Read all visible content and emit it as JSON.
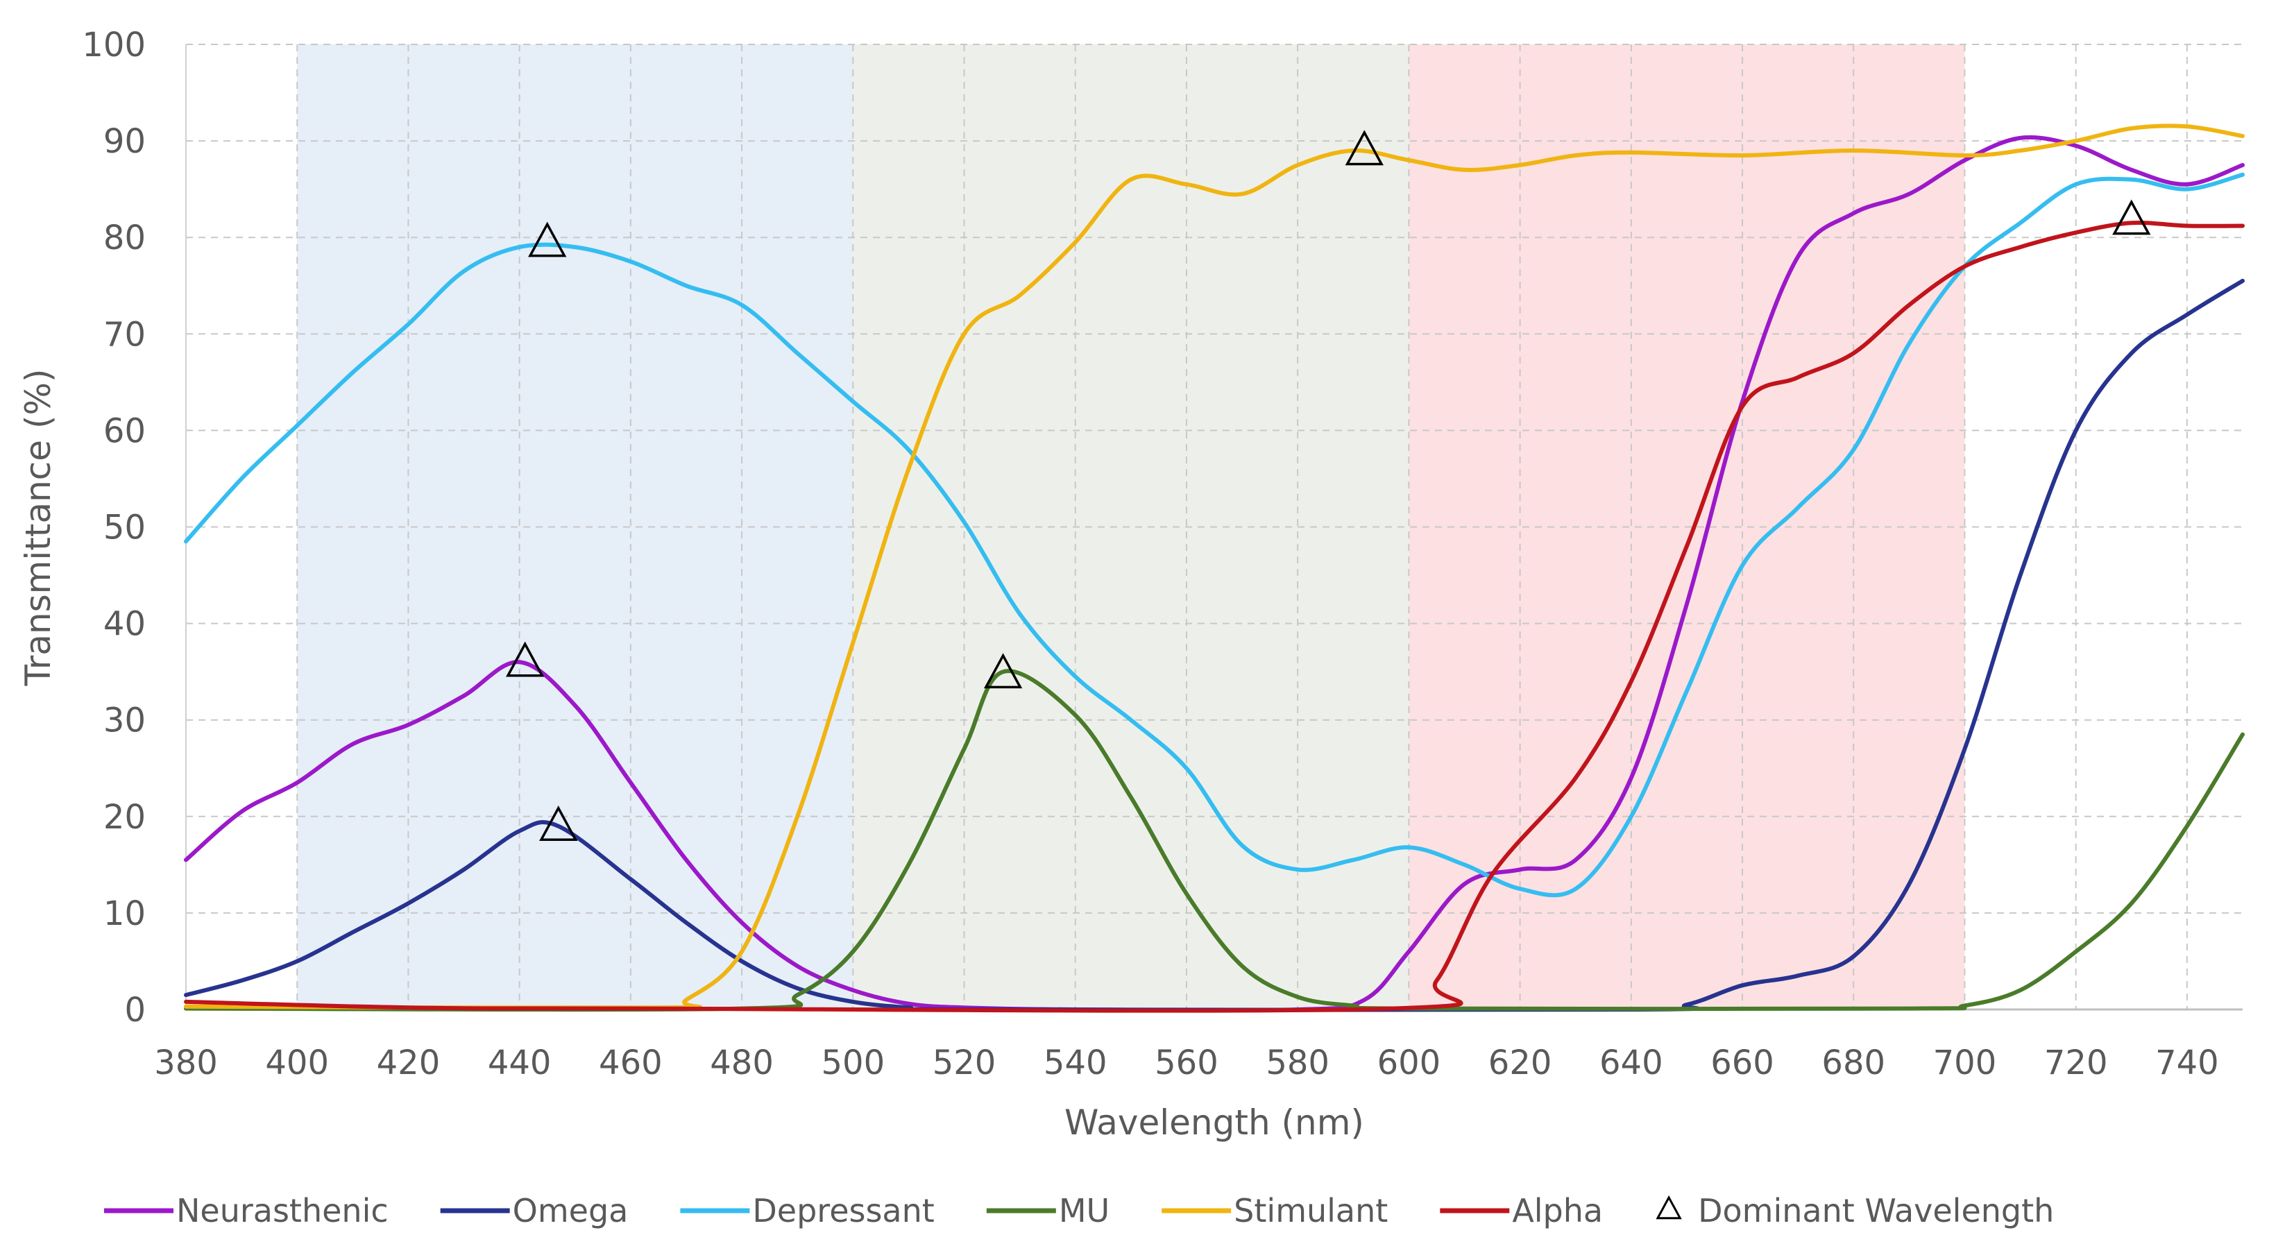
{
  "chart_data": {
    "type": "line",
    "title": "",
    "xlabel": "Wavelength (nm)",
    "ylabel": "Transmittance (%)",
    "xlim": [
      380,
      750
    ],
    "ylim": [
      0,
      100
    ],
    "x_ticks": [
      380,
      400,
      420,
      440,
      460,
      480,
      500,
      520,
      540,
      560,
      580,
      600,
      620,
      640,
      660,
      680,
      700,
      720,
      740
    ],
    "y_ticks": [
      0,
      10,
      20,
      30,
      40,
      50,
      60,
      70,
      80,
      90,
      100
    ],
    "grid": true,
    "legend_position": "bottom",
    "bands": [
      {
        "from": 400,
        "to": 500,
        "color": "#e6eef8"
      },
      {
        "from": 500,
        "to": 600,
        "color": "#edf0ea"
      },
      {
        "from": 600,
        "to": 700,
        "color": "#fde0e2"
      }
    ],
    "series": [
      {
        "name": "Neurasthenic",
        "color": "#9b19c9",
        "points": [
          [
            380,
            15.5
          ],
          [
            390,
            20.5
          ],
          [
            400,
            23.5
          ],
          [
            410,
            27.5
          ],
          [
            420,
            29.5
          ],
          [
            430,
            32.5
          ],
          [
            440,
            36
          ],
          [
            450,
            31.5
          ],
          [
            460,
            23.5
          ],
          [
            470,
            15.5
          ],
          [
            480,
            9
          ],
          [
            490,
            4.5
          ],
          [
            500,
            2
          ],
          [
            510,
            0.6
          ],
          [
            520,
            0.2
          ],
          [
            540,
            0
          ],
          [
            580,
            0
          ],
          [
            592,
            1
          ],
          [
            600,
            6
          ],
          [
            610,
            13
          ],
          [
            620,
            14.5
          ],
          [
            630,
            15.5
          ],
          [
            640,
            24
          ],
          [
            650,
            42
          ],
          [
            660,
            63
          ],
          [
            670,
            78
          ],
          [
            680,
            82.5
          ],
          [
            690,
            84.5
          ],
          [
            700,
            88
          ],
          [
            710,
            90.3
          ],
          [
            720,
            89.5
          ],
          [
            730,
            87
          ],
          [
            740,
            85.5
          ],
          [
            750,
            87.5
          ]
        ]
      },
      {
        "name": "Omega",
        "color": "#27338f",
        "points": [
          [
            380,
            1.5
          ],
          [
            390,
            3
          ],
          [
            400,
            5
          ],
          [
            410,
            8
          ],
          [
            420,
            11
          ],
          [
            430,
            14.5
          ],
          [
            440,
            18.5
          ],
          [
            447,
            19
          ],
          [
            460,
            13.5
          ],
          [
            470,
            9
          ],
          [
            480,
            5
          ],
          [
            490,
            2.2
          ],
          [
            500,
            0.8
          ],
          [
            510,
            0.2
          ],
          [
            520,
            0
          ],
          [
            640,
            0
          ],
          [
            650,
            0.5
          ],
          [
            660,
            2.5
          ],
          [
            670,
            3.5
          ],
          [
            680,
            5.5
          ],
          [
            690,
            13
          ],
          [
            700,
            27
          ],
          [
            710,
            45
          ],
          [
            720,
            60
          ],
          [
            730,
            68
          ],
          [
            740,
            72
          ],
          [
            750,
            75.5
          ]
        ]
      },
      {
        "name": "Depressant",
        "color": "#35bdf0",
        "points": [
          [
            380,
            48.5
          ],
          [
            390,
            55
          ],
          [
            400,
            60.5
          ],
          [
            410,
            66
          ],
          [
            420,
            71
          ],
          [
            430,
            76.5
          ],
          [
            440,
            79
          ],
          [
            450,
            79
          ],
          [
            460,
            77.5
          ],
          [
            470,
            75
          ],
          [
            480,
            73
          ],
          [
            490,
            68
          ],
          [
            500,
            63
          ],
          [
            510,
            58
          ],
          [
            520,
            50.5
          ],
          [
            530,
            41
          ],
          [
            540,
            34.5
          ],
          [
            550,
            30
          ],
          [
            560,
            25
          ],
          [
            570,
            17
          ],
          [
            580,
            14.5
          ],
          [
            590,
            15.5
          ],
          [
            600,
            16.8
          ],
          [
            610,
            15
          ],
          [
            620,
            12.5
          ],
          [
            630,
            12.5
          ],
          [
            640,
            20
          ],
          [
            650,
            33
          ],
          [
            660,
            46
          ],
          [
            670,
            52
          ],
          [
            680,
            58
          ],
          [
            690,
            69
          ],
          [
            700,
            77
          ],
          [
            710,
            81.5
          ],
          [
            720,
            85.5
          ],
          [
            730,
            86
          ],
          [
            740,
            85
          ],
          [
            750,
            86.5
          ]
        ]
      },
      {
        "name": "MU",
        "color": "#4a7b2a",
        "points": [
          [
            380,
            0.1
          ],
          [
            480,
            0.1
          ],
          [
            490,
            1.5
          ],
          [
            500,
            6
          ],
          [
            510,
            15
          ],
          [
            520,
            27
          ],
          [
            527,
            35
          ],
          [
            540,
            30.5
          ],
          [
            550,
            22
          ],
          [
            560,
            12
          ],
          [
            570,
            4.5
          ],
          [
            580,
            1.3
          ],
          [
            590,
            0.4
          ],
          [
            600,
            0.1
          ],
          [
            690,
            0.1
          ],
          [
            700,
            0.4
          ],
          [
            710,
            2
          ],
          [
            720,
            6
          ],
          [
            730,
            11
          ],
          [
            740,
            19
          ],
          [
            750,
            28.5
          ]
        ]
      },
      {
        "name": "Stimulant",
        "color": "#f0b412",
        "points": [
          [
            380,
            0.3
          ],
          [
            465,
            0.2
          ],
          [
            470,
            1
          ],
          [
            480,
            6
          ],
          [
            490,
            20
          ],
          [
            500,
            38
          ],
          [
            510,
            56
          ],
          [
            520,
            70
          ],
          [
            530,
            74
          ],
          [
            540,
            79.5
          ],
          [
            550,
            86
          ],
          [
            560,
            85.5
          ],
          [
            570,
            84.5
          ],
          [
            580,
            87.5
          ],
          [
            590,
            89
          ],
          [
            600,
            88
          ],
          [
            610,
            87
          ],
          [
            620,
            87.5
          ],
          [
            630,
            88.5
          ],
          [
            640,
            88.8
          ],
          [
            660,
            88.5
          ],
          [
            680,
            89
          ],
          [
            700,
            88.5
          ],
          [
            710,
            89
          ],
          [
            720,
            90
          ],
          [
            730,
            91.3
          ],
          [
            740,
            91.5
          ],
          [
            750,
            90.5
          ]
        ]
      },
      {
        "name": "Alpha",
        "color": "#c0141b",
        "points": [
          [
            380,
            0.8
          ],
          [
            420,
            0.2
          ],
          [
            460,
            0.1
          ],
          [
            597,
            0.1
          ],
          [
            605,
            3
          ],
          [
            615,
            14
          ],
          [
            630,
            24
          ],
          [
            640,
            34
          ],
          [
            650,
            48
          ],
          [
            660,
            62.5
          ],
          [
            670,
            65.5
          ],
          [
            680,
            68
          ],
          [
            690,
            73
          ],
          [
            700,
            77
          ],
          [
            710,
            79
          ],
          [
            720,
            80.5
          ],
          [
            730,
            81.5
          ],
          [
            740,
            81.2
          ],
          [
            750,
            81.2
          ]
        ]
      }
    ],
    "markers": {
      "name": "Dominant Wavelength",
      "symbol": "triangle",
      "points": [
        [
          445,
          79.5
        ],
        [
          441,
          36
        ],
        [
          447,
          19
        ],
        [
          527,
          34.8
        ],
        [
          592,
          89
        ],
        [
          730,
          81.8
        ]
      ]
    }
  }
}
